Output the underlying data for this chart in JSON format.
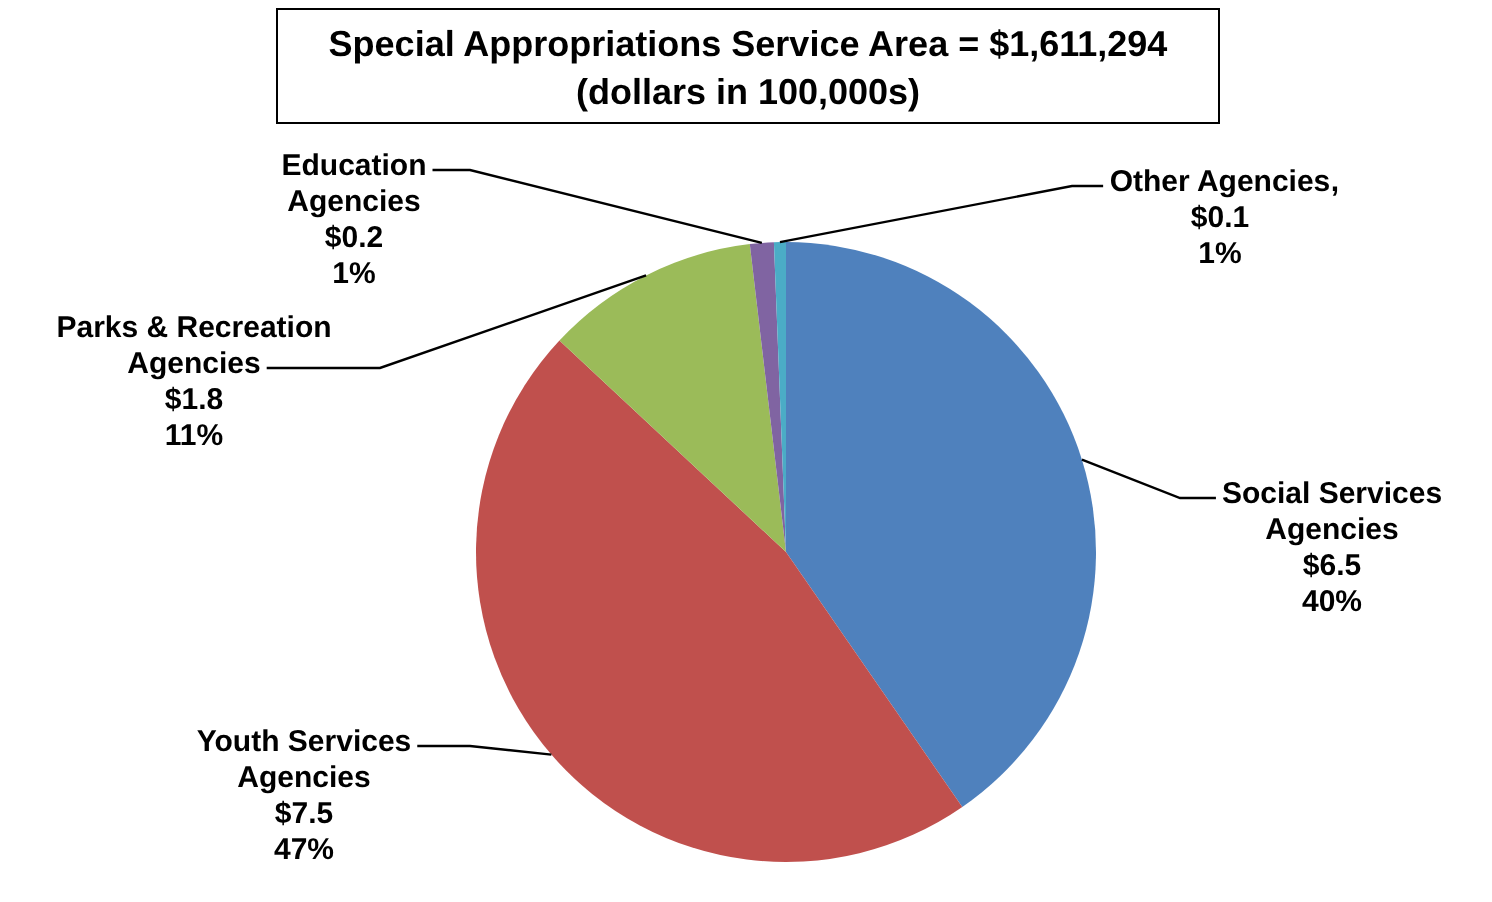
{
  "chart_data": {
    "type": "pie",
    "title": "Special Appropriations Service Area = $1,611,294",
    "subtitle": "(dollars in 100,000s)",
    "categories": [
      "Social Services Agencies",
      "Youth Services Agencies",
      "Parks & Recreation Agencies",
      "Education Agencies",
      "Other Agencies"
    ],
    "annotations": [
      ","
    ],
    "values": [
      6.5,
      7.5,
      1.8,
      0.2,
      0.1
    ],
    "value_labels": [
      "$6.5\n40%",
      "$7.5\n47%",
      "$1.8\n11%",
      "$0.2\n1%",
      "$0.1\n1%"
    ],
    "colors": [
      "#4f81bd",
      "#c0504d",
      "#9bbb59",
      "#8064a2",
      "#4bacc6"
    ],
    "legend": false
  }
}
